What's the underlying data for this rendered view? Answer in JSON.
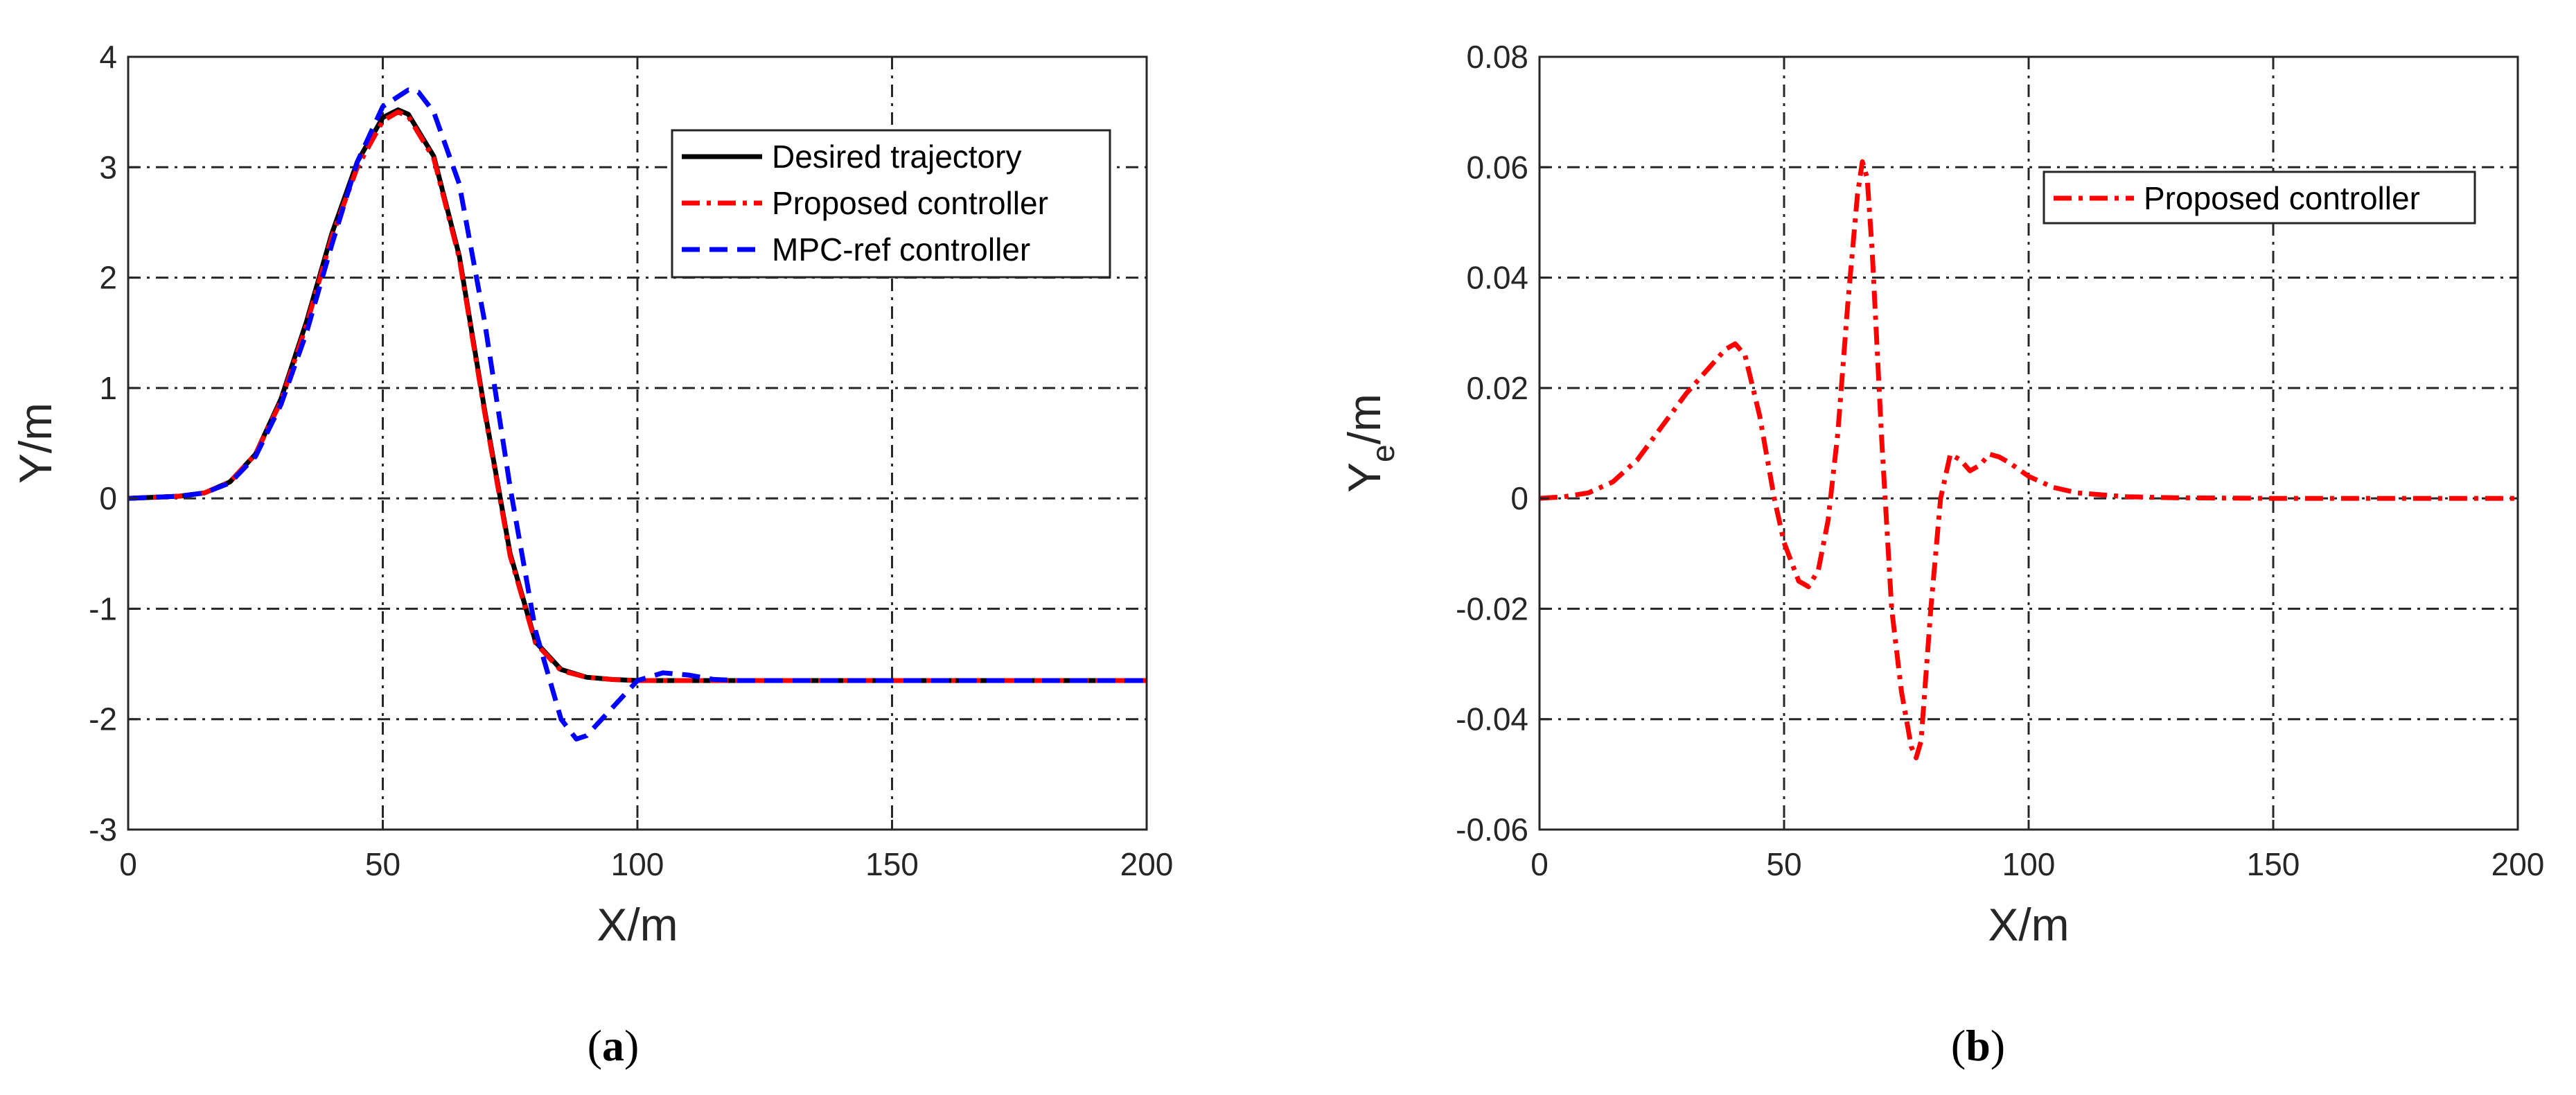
{
  "chart_data": [
    {
      "type": "line",
      "panel": "a",
      "caption": "(a)",
      "xlabel": "X/m",
      "ylabel": "Y/m",
      "xlim": [
        0,
        200
      ],
      "ylim": [
        -3,
        4
      ],
      "xticks": [
        0,
        50,
        100,
        150,
        200
      ],
      "yticks": [
        -3,
        -2,
        -1,
        0,
        1,
        2,
        3,
        4
      ],
      "grid": true,
      "legend_position": "top-right",
      "series": [
        {
          "name": "Desired trajectory",
          "color": "#000000",
          "style": "solid",
          "x": [
            0,
            10,
            15,
            20,
            25,
            30,
            35,
            40,
            45,
            50,
            53,
            55,
            60,
            65,
            70,
            75,
            80,
            85,
            90,
            95,
            100,
            110,
            200
          ],
          "y": [
            0,
            0.02,
            0.05,
            0.15,
            0.4,
            0.9,
            1.6,
            2.4,
            3.05,
            3.45,
            3.52,
            3.48,
            3.1,
            2.2,
            0.8,
            -0.5,
            -1.3,
            -1.55,
            -1.62,
            -1.64,
            -1.65,
            -1.65,
            -1.65
          ]
        },
        {
          "name": "Proposed controller",
          "color": "#ff0000",
          "style": "dashdot",
          "x": [
            0,
            10,
            15,
            20,
            25,
            30,
            35,
            40,
            45,
            50,
            53,
            55,
            60,
            65,
            70,
            75,
            80,
            85,
            90,
            95,
            100,
            110,
            200
          ],
          "y": [
            0,
            0.02,
            0.05,
            0.15,
            0.4,
            0.88,
            1.57,
            2.37,
            3.0,
            3.42,
            3.5,
            3.46,
            3.08,
            2.18,
            0.78,
            -0.52,
            -1.31,
            -1.56,
            -1.62,
            -1.64,
            -1.65,
            -1.65,
            -1.65
          ]
        },
        {
          "name": "MPC-ref controller",
          "color": "#0000ff",
          "style": "dashed",
          "x": [
            0,
            10,
            15,
            20,
            25,
            30,
            35,
            40,
            45,
            50,
            55,
            57,
            60,
            65,
            70,
            75,
            80,
            85,
            88,
            90,
            95,
            100,
            105,
            110,
            115,
            120,
            200
          ],
          "y": [
            0,
            0.02,
            0.05,
            0.14,
            0.38,
            0.85,
            1.5,
            2.3,
            3.05,
            3.55,
            3.7,
            3.68,
            3.5,
            2.85,
            1.6,
            0.1,
            -1.2,
            -2.0,
            -2.18,
            -2.15,
            -1.9,
            -1.65,
            -1.58,
            -1.6,
            -1.64,
            -1.65,
            -1.65
          ]
        }
      ]
    },
    {
      "type": "line",
      "panel": "b",
      "caption": "(b)",
      "xlabel": "X/m",
      "ylabel_main": "Y",
      "ylabel_sub": "e",
      "ylabel_tail": "/m",
      "xlim": [
        0,
        200
      ],
      "ylim": [
        -0.06,
        0.08
      ],
      "xticks": [
        0,
        50,
        100,
        150,
        200
      ],
      "yticks": [
        -0.06,
        -0.04,
        -0.02,
        0,
        0.02,
        0.04,
        0.06,
        0.08
      ],
      "grid": true,
      "legend_position": "top-right",
      "series": [
        {
          "name": "Proposed controller",
          "color": "#ff0000",
          "style": "dashdot",
          "x": [
            0,
            5,
            10,
            15,
            20,
            25,
            30,
            35,
            38,
            40,
            42,
            45,
            48,
            50,
            53,
            55,
            57,
            59,
            61,
            63,
            65,
            66,
            67,
            68,
            70,
            72,
            74,
            76,
            77,
            78,
            80,
            82,
            84,
            86,
            88,
            90,
            92,
            94,
            96,
            100,
            105,
            110,
            120,
            130,
            150,
            200
          ],
          "y": [
            0,
            0.0003,
            0.001,
            0.003,
            0.007,
            0.013,
            0.019,
            0.024,
            0.027,
            0.028,
            0.026,
            0.015,
            0.0,
            -0.008,
            -0.015,
            -0.016,
            -0.013,
            -0.004,
            0.012,
            0.035,
            0.055,
            0.061,
            0.058,
            0.045,
            0.01,
            -0.02,
            -0.035,
            -0.045,
            -0.047,
            -0.044,
            -0.02,
            0.0,
            0.008,
            0.007,
            0.005,
            0.006,
            0.008,
            0.0075,
            0.0065,
            0.004,
            0.002,
            0.001,
            0.0003,
            0.0001,
            0,
            0
          ]
        }
      ]
    }
  ]
}
